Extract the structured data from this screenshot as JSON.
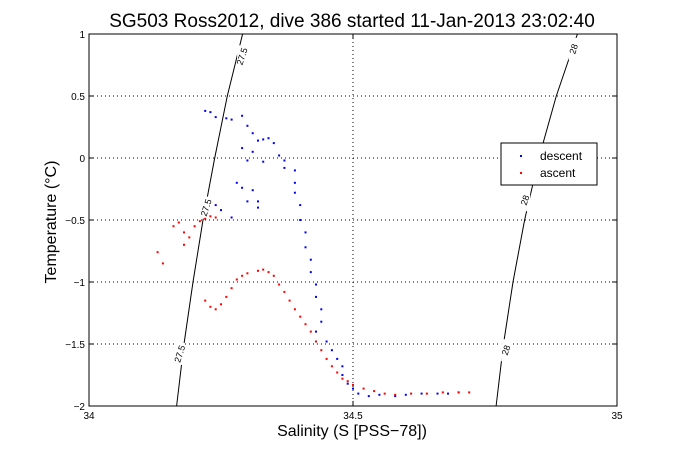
{
  "chart_data": {
    "type": "scatter",
    "title": "SG503 Ross2012, dive 386 started 11-Jan-2013 23:02:40",
    "xlabel": "Salinity (S [PSS−78])",
    "ylabel": "Temperature (°C)",
    "xlim": [
      34,
      35
    ],
    "ylim": [
      -2,
      1
    ],
    "xticks": [
      "34",
      "34.5",
      "35"
    ],
    "yticks": [
      "1",
      "0.5",
      "0",
      "−0.5",
      "−1",
      "−1.5",
      "−2"
    ],
    "grid": true,
    "legend_position": "right",
    "series": [
      {
        "name": "descent",
        "color": "#0000ff",
        "points": [
          [
            34.22,
            0.38
          ],
          [
            34.23,
            0.37
          ],
          [
            34.24,
            0.33
          ],
          [
            34.26,
            0.32
          ],
          [
            34.27,
            0.31
          ],
          [
            34.29,
            0.34
          ],
          [
            34.3,
            0.26
          ],
          [
            34.31,
            0.2
          ],
          [
            34.32,
            0.14
          ],
          [
            34.33,
            0.15
          ],
          [
            34.34,
            0.16
          ],
          [
            34.35,
            0.12
          ],
          [
            34.29,
            0.08
          ],
          [
            34.31,
            0.05
          ],
          [
            34.3,
            -0.02
          ],
          [
            34.33,
            -0.03
          ],
          [
            34.36,
            0.02
          ],
          [
            34.37,
            -0.02
          ],
          [
            34.37,
            -0.08
          ],
          [
            34.28,
            -0.2
          ],
          [
            34.29,
            -0.24
          ],
          [
            34.31,
            -0.26
          ],
          [
            34.3,
            -0.35
          ],
          [
            34.24,
            -0.38
          ],
          [
            34.25,
            -0.42
          ],
          [
            34.27,
            -0.48
          ],
          [
            34.32,
            -0.35
          ],
          [
            34.32,
            -0.4
          ],
          [
            34.39,
            -0.1
          ],
          [
            34.39,
            -0.2
          ],
          [
            34.39,
            -0.28
          ],
          [
            34.4,
            -0.38
          ],
          [
            34.4,
            -0.5
          ],
          [
            34.41,
            -0.6
          ],
          [
            34.41,
            -0.72
          ],
          [
            34.42,
            -0.82
          ],
          [
            34.42,
            -0.92
          ],
          [
            34.43,
            -1.02
          ],
          [
            34.43,
            -1.12
          ],
          [
            34.44,
            -1.22
          ],
          [
            34.44,
            -1.32
          ],
          [
            34.43,
            -1.4
          ],
          [
            34.45,
            -1.48
          ],
          [
            34.46,
            -1.55
          ],
          [
            34.47,
            -1.62
          ],
          [
            34.48,
            -1.68
          ],
          [
            34.48,
            -1.75
          ],
          [
            34.49,
            -1.82
          ],
          [
            34.5,
            -1.86
          ],
          [
            34.51,
            -1.9
          ],
          [
            34.53,
            -1.92
          ],
          [
            34.55,
            -1.91
          ],
          [
            34.58,
            -1.92
          ],
          [
            34.6,
            -1.91
          ],
          [
            34.63,
            -1.9
          ],
          [
            34.66,
            -1.9
          ],
          [
            34.68,
            -1.9
          ],
          [
            34.7,
            -1.89
          ]
        ]
      },
      {
        "name": "ascent",
        "color": "#ff0000",
        "points": [
          [
            34.13,
            -0.76
          ],
          [
            34.14,
            -0.85
          ],
          [
            34.16,
            -0.55
          ],
          [
            34.17,
            -0.52
          ],
          [
            34.18,
            -0.6
          ],
          [
            34.18,
            -0.7
          ],
          [
            34.19,
            -0.64
          ],
          [
            34.2,
            -0.55
          ],
          [
            34.21,
            -0.51
          ],
          [
            34.22,
            -0.49
          ],
          [
            34.22,
            -1.15
          ],
          [
            34.23,
            -1.2
          ],
          [
            34.24,
            -1.22
          ],
          [
            34.25,
            -1.18
          ],
          [
            34.26,
            -1.12
          ],
          [
            34.27,
            -1.05
          ],
          [
            34.28,
            -0.98
          ],
          [
            34.29,
            -0.95
          ],
          [
            34.3,
            -0.93
          ],
          [
            34.32,
            -0.91
          ],
          [
            34.33,
            -0.9
          ],
          [
            34.34,
            -0.92
          ],
          [
            34.35,
            -0.95
          ],
          [
            34.36,
            -1.02
          ],
          [
            34.37,
            -1.08
          ],
          [
            34.38,
            -1.15
          ],
          [
            34.39,
            -1.22
          ],
          [
            34.4,
            -1.28
          ],
          [
            34.41,
            -1.34
          ],
          [
            34.42,
            -1.4
          ],
          [
            34.43,
            -1.48
          ],
          [
            34.44,
            -1.55
          ],
          [
            34.45,
            -1.62
          ],
          [
            34.46,
            -1.68
          ],
          [
            34.47,
            -1.73
          ],
          [
            34.48,
            -1.78
          ],
          [
            34.49,
            -1.8
          ],
          [
            34.5,
            -1.83
          ],
          [
            34.52,
            -1.86
          ],
          [
            34.54,
            -1.88
          ],
          [
            34.56,
            -1.9
          ],
          [
            34.58,
            -1.91
          ],
          [
            34.61,
            -1.9
          ],
          [
            34.64,
            -1.9
          ],
          [
            34.67,
            -1.89
          ],
          [
            34.7,
            -1.89
          ],
          [
            34.72,
            -1.89
          ],
          [
            34.24,
            -0.48
          ],
          [
            34.23,
            -0.47
          ]
        ]
      }
    ],
    "contours": [
      {
        "label": "27.5",
        "points": [
          [
            34.291,
            1.0
          ],
          [
            34.262,
            0.5
          ],
          [
            34.238,
            0.0
          ],
          [
            34.216,
            -0.5
          ],
          [
            34.197,
            -1.0
          ],
          [
            34.18,
            -1.5
          ],
          [
            34.166,
            -2.0
          ]
        ],
        "label_positions": [
          [
            34.29,
            0.82
          ],
          [
            34.222,
            -0.4
          ],
          [
            34.172,
            -1.58
          ]
        ]
      },
      {
        "label": "28",
        "points": [
          [
            34.925,
            1.0
          ],
          [
            34.885,
            0.5
          ],
          [
            34.852,
            0.0
          ],
          [
            34.825,
            -0.5
          ],
          [
            34.803,
            -1.0
          ],
          [
            34.785,
            -1.5
          ],
          [
            34.771,
            -2.0
          ]
        ],
        "label_positions": [
          [
            34.918,
            0.88
          ],
          [
            34.826,
            -0.34
          ],
          [
            34.79,
            -1.55
          ]
        ]
      }
    ]
  }
}
